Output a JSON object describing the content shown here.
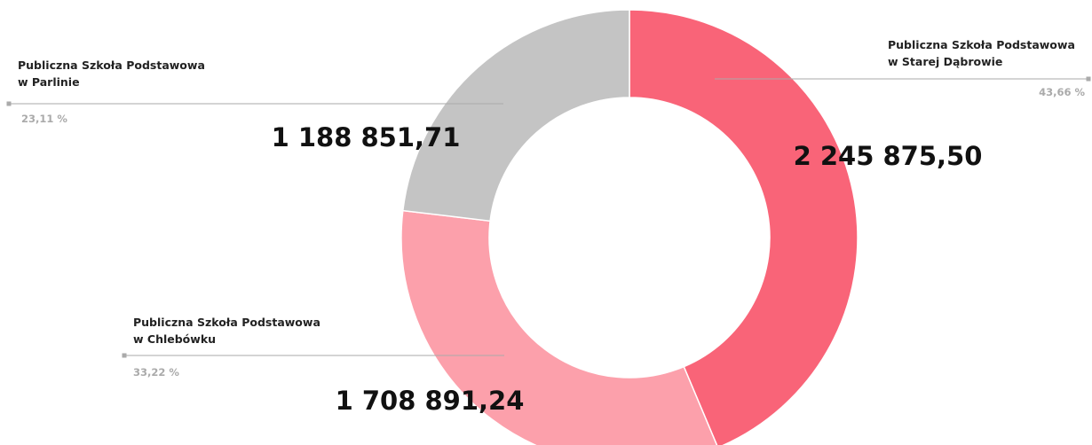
{
  "chart_data": {
    "type": "donut",
    "categories": [
      "Publiczna Szkoła Podstawowa w Starej Dąbrowie",
      "Publiczna Szkoła Podstawowa w Chlebówku",
      "Publiczna Szkoła Podstawowa w Parlinie"
    ],
    "values": [
      2245875.5,
      1708891.24,
      1188851.71
    ],
    "value_labels": [
      "2 245 875,50",
      "1 708 891,24",
      "1 188 851,71"
    ],
    "percent_labels": [
      "43,66 %",
      "33,22 %",
      "23,11 %"
    ],
    "colors": [
      "#f96478",
      "#fca0ab",
      "#c4c4c4"
    ]
  }
}
